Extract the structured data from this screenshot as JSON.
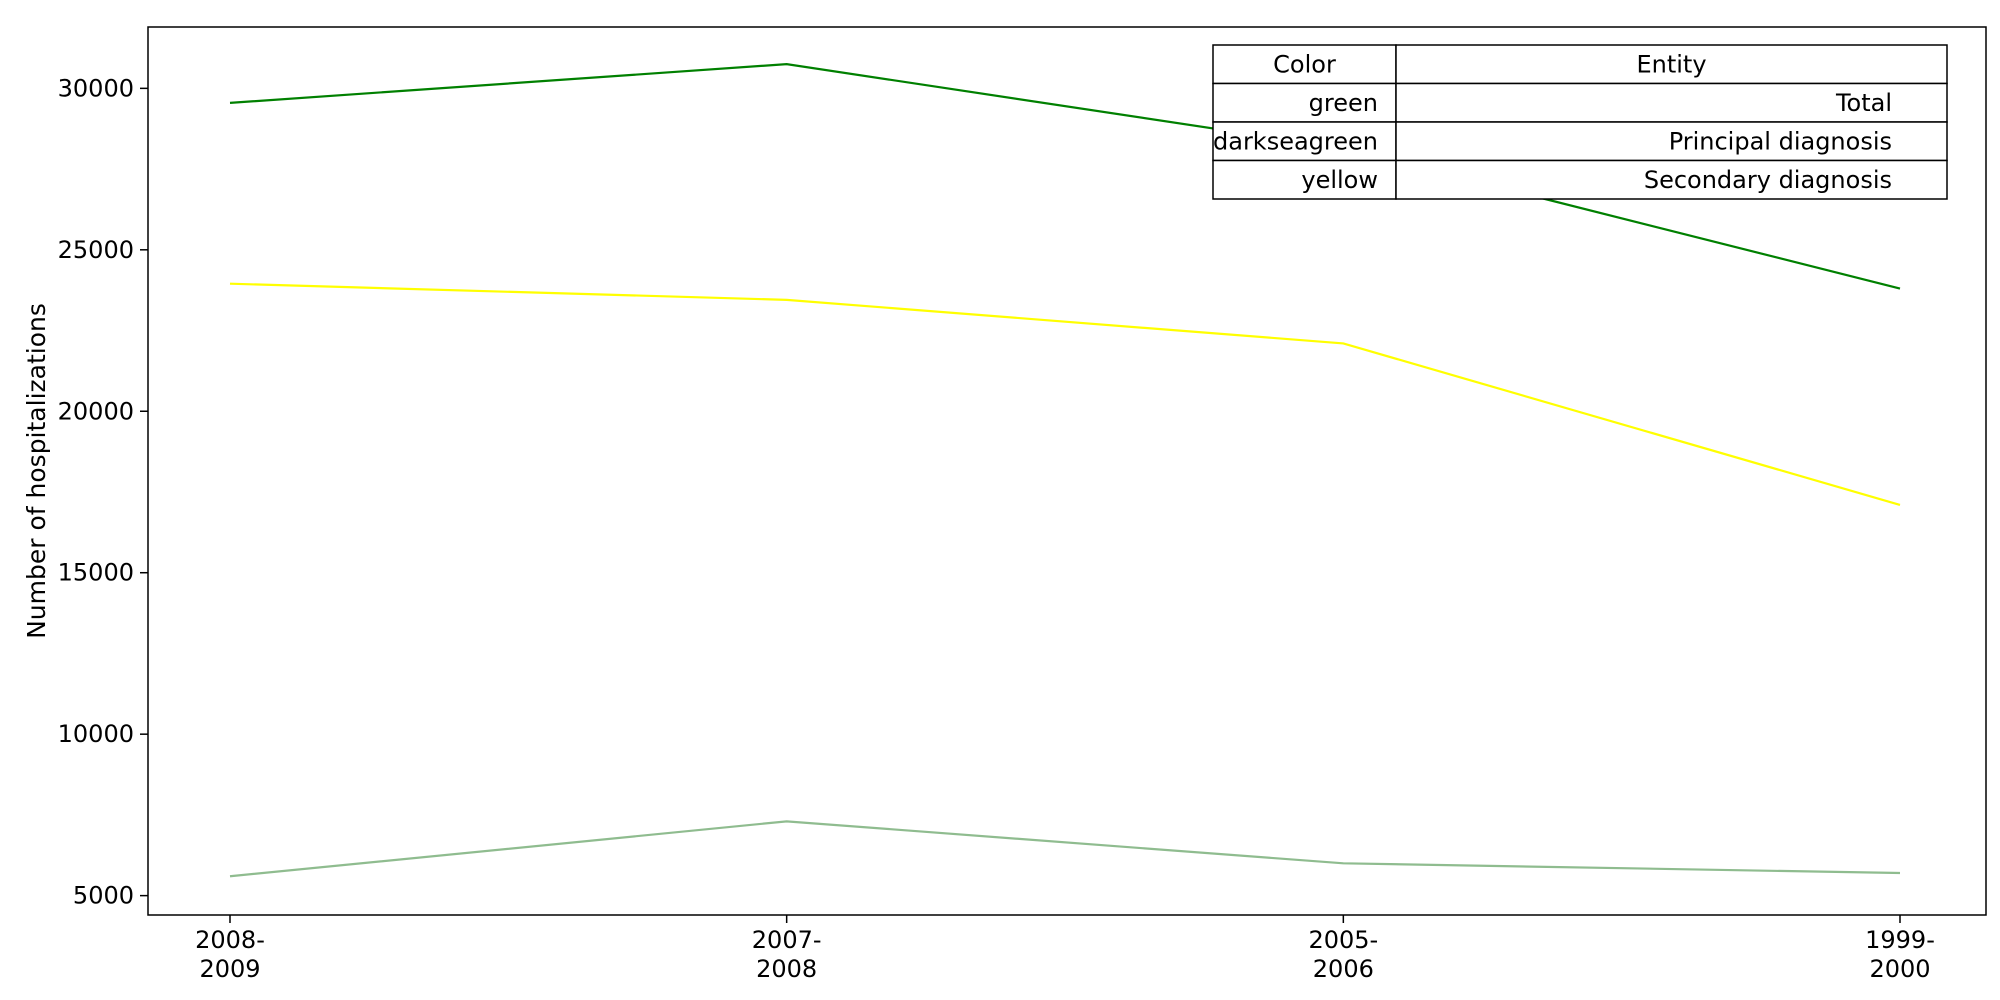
{
  "chart_data": {
    "type": "line",
    "x": [
      "2008-\n2009",
      "2007-\n2008",
      "2005-\n2006",
      "1999-\n2000"
    ],
    "ylabel": "Number of hospitalizations",
    "ylim": [
      4400,
      31900
    ],
    "yticks": [
      5000,
      10000,
      15000,
      20000,
      25000,
      30000
    ],
    "grid": false,
    "series": [
      {
        "name": "Total",
        "color": "green",
        "hex": "#008000",
        "values": [
          29550,
          30750,
          28150,
          23800
        ]
      },
      {
        "name": "Principal diagnosis",
        "color": "darkseagreen",
        "hex": "#8fbc8f",
        "values": [
          5600,
          7300,
          6000,
          5700
        ]
      },
      {
        "name": "Secondary diagnosis",
        "color": "yellow",
        "hex": "#ffff00",
        "values": [
          23950,
          23450,
          22100,
          17100
        ]
      }
    ],
    "legend_table": {
      "placement": "top-right",
      "headers": [
        "Color",
        "Entity"
      ],
      "rows": [
        [
          "green",
          "Total"
        ],
        [
          "darkseagreen",
          "Principal diagnosis"
        ],
        [
          "yellow",
          "Secondary diagnosis"
        ]
      ]
    }
  }
}
